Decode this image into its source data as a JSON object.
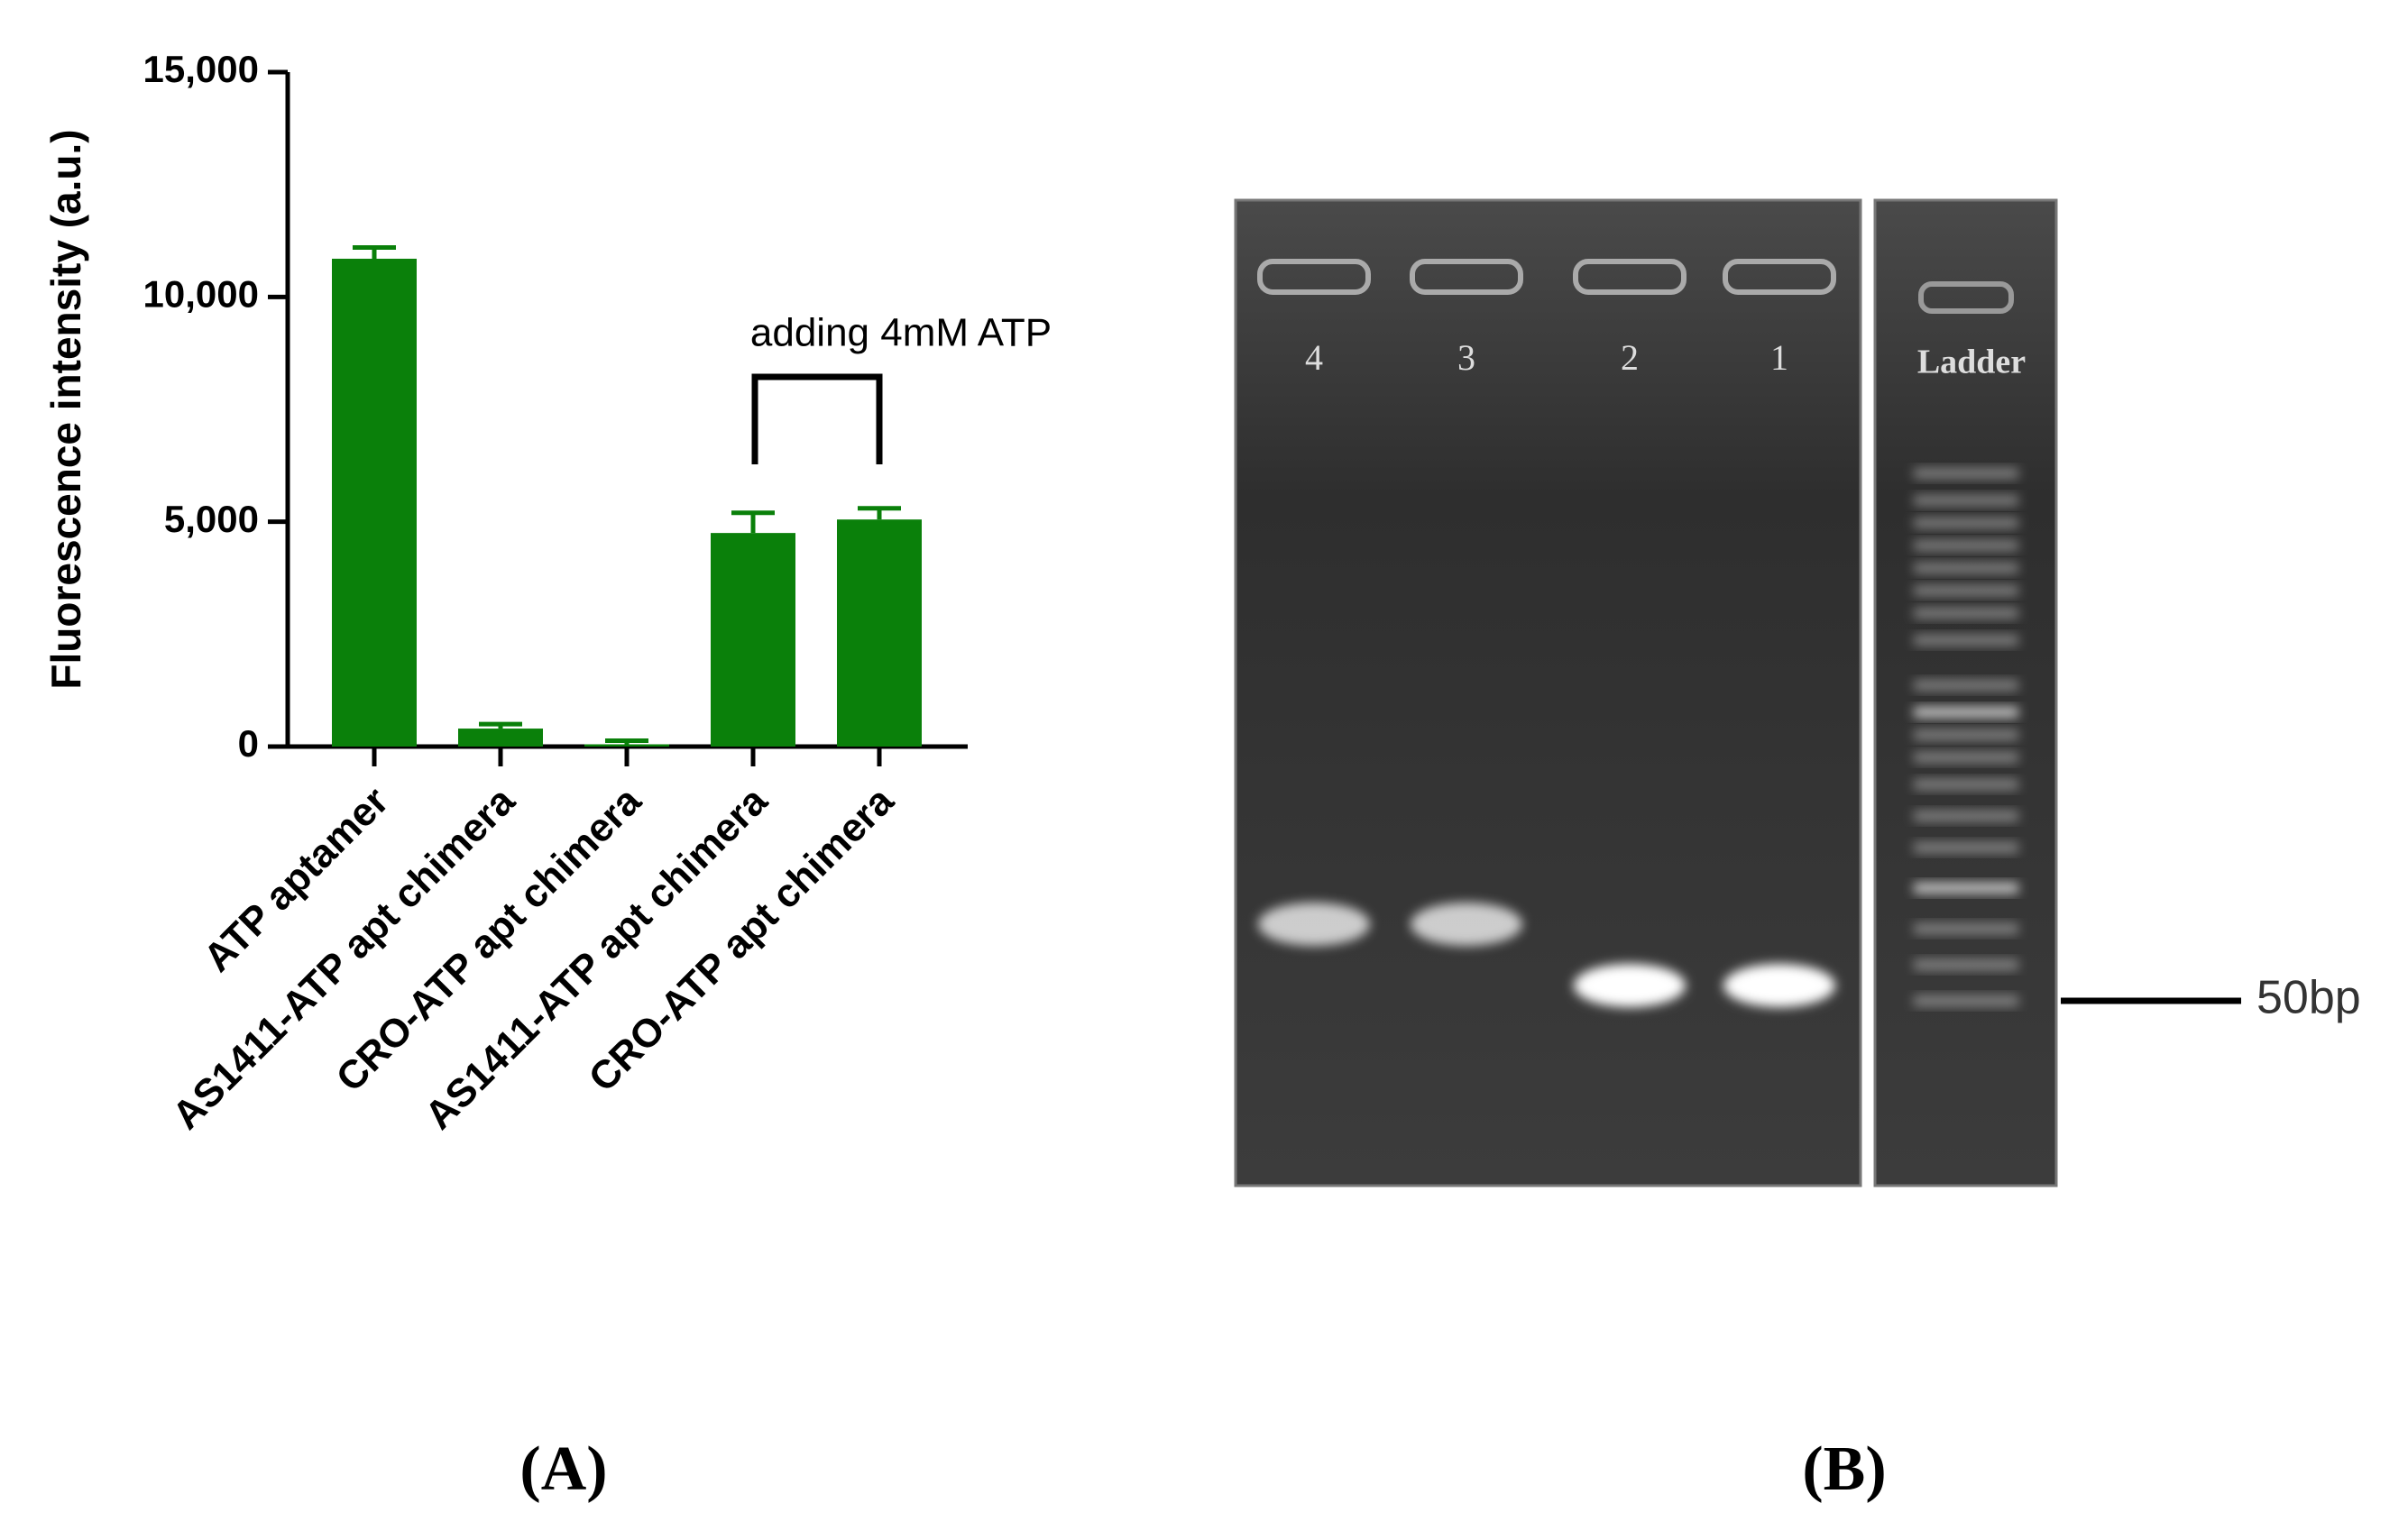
{
  "chart_data": {
    "type": "bar",
    "y_label": "Fluorescence intensity (a.u.)",
    "categories": [
      "ATP aptamer",
      "AS1411-ATP apt chimera",
      "CRO-ATP apt chimera",
      "AS1411-ATP apt chimera",
      "CRO-ATP apt chimera"
    ],
    "values": [
      10850,
      400,
      50,
      4750,
      5050
    ],
    "errors": [
      250,
      100,
      80,
      450,
      250
    ],
    "color": "#0a800a",
    "ylim": [
      0,
      15000
    ],
    "yticks": [
      0,
      {
        "value": 5000,
        "label": "5,000"
      },
      {
        "value": 10000,
        "label": "10,000"
      },
      {
        "value": 15000,
        "label": "15,000"
      }
    ],
    "annotation": "adding 4mM  ATP"
  },
  "gel": {
    "lane_labels": [
      "4",
      "3",
      "2",
      "1"
    ],
    "ladder_label": "Ladder",
    "marker_label": "50bp"
  },
  "panel_labels": [
    "(A)",
    "(B)"
  ]
}
